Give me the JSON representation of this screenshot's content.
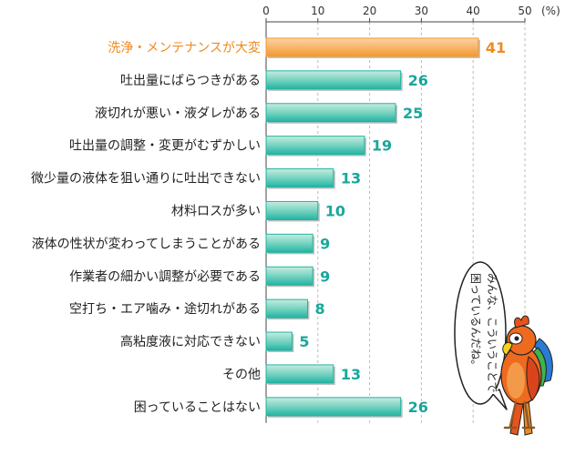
{
  "chart_data": {
    "type": "bar",
    "orientation": "horizontal",
    "categories": [
      "洗浄・メンテナンスが大変",
      "吐出量にばらつきがある",
      "液切れが悪い・液ダレがある",
      "吐出量の調整・変更がむずかしい",
      "微少量の液体を狙い通りに吐出できない",
      "材料ロスが多い",
      "液体の性状が変わってしまうことがある",
      "作業者の細かい調整が必要である",
      "空打ち・エア噛み・途切れがある",
      "高粘度液に対応できない",
      "その他",
      "困っていることはない"
    ],
    "values": [
      41,
      26,
      25,
      19,
      13,
      10,
      9,
      9,
      8,
      5,
      13,
      26
    ],
    "xlim": [
      0,
      50
    ],
    "ticks": [
      0,
      10,
      20,
      30,
      40,
      50
    ],
    "unit": "(%)",
    "highlight_index": 0,
    "axis_position": "top",
    "colors": {
      "highlight_bar": "#f39a2c",
      "highlight_bar_light": "#fbd3a3",
      "bar": "#22b3a2",
      "bar_light": "#c6ecdf",
      "bar_shadow": "#bfbfbf",
      "highlight_text": "#f08a1e",
      "value_text": "#19a79a",
      "grid": "#bbbbbb"
    }
  },
  "annotation": {
    "speech_bubble_lines": [
      "みんな、こういうことで",
      "困っているんだね。"
    ],
    "mascot": "parrot-mascot-icon"
  }
}
